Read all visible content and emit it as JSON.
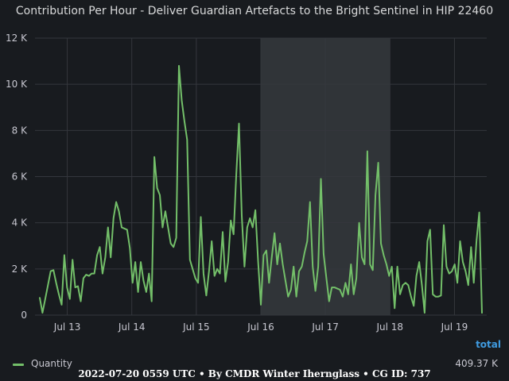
{
  "title": "Contribution Per Hour - Deliver Guardian Artefacts to the Bright Sentinel in HIP 22460",
  "total_header": "total",
  "legend": {
    "label": "Quantity",
    "total": "409.37 K"
  },
  "footer": "2022-07-20 0559 UTC • By CMDR Winter Ihernglass • CG ID: 737",
  "colors": {
    "background": "#181b1f",
    "series": "#73bf69",
    "grid": "#34373d",
    "highlight": "#35383d",
    "total_link": "#3f9be0"
  },
  "chart_data": {
    "type": "line",
    "title": "Contribution Per Hour - Deliver Guardian Artefacts to the Bright Sentinel in HIP 22460",
    "xlabel": "",
    "ylabel": "",
    "x_range": [
      "2022-07-12 12:00",
      "2022-07-19 12:00"
    ],
    "x_ticks": [
      "Jul 13",
      "Jul 14",
      "Jul 15",
      "Jul 16",
      "Jul 17",
      "Jul 18",
      "Jul 19"
    ],
    "ylim": [
      0,
      12000
    ],
    "y_ticks": [
      0,
      2000,
      4000,
      6000,
      8000,
      10000,
      12000
    ],
    "y_tick_labels": [
      "0",
      "2 K",
      "4 K",
      "6 K",
      "8 K",
      "10 K",
      "12 K"
    ],
    "grid": true,
    "legend_position": "bottom",
    "highlight_range": [
      "2022-07-16 00:00",
      "2022-07-18 00:00"
    ],
    "series": [
      {
        "name": "Quantity",
        "color": "#73bf69",
        "values": [
          750,
          100,
          700,
          1300,
          1900,
          1950,
          1400,
          900,
          450,
          2600,
          1200,
          700,
          2400,
          1200,
          1250,
          600,
          1600,
          1750,
          1700,
          1800,
          1800,
          2600,
          2950,
          1800,
          2500,
          3800,
          2500,
          4200,
          4900,
          4500,
          3800,
          3750,
          3700,
          2900,
          1400,
          2300,
          1000,
          2300,
          1500,
          1000,
          1800,
          600,
          6850,
          5500,
          5200,
          3800,
          4500,
          3800,
          3100,
          2950,
          3350,
          10800,
          9300,
          8400,
          7600,
          2400,
          2000,
          1600,
          1400,
          4250,
          1800,
          850,
          1900,
          3200,
          1700,
          2000,
          1800,
          3600,
          1450,
          2300,
          4100,
          3500,
          6100,
          8300,
          4300,
          2100,
          3800,
          4200,
          3800,
          4550,
          2300,
          450,
          2600,
          2800,
          1400,
          2500,
          3550,
          2200,
          3100,
          2200,
          1500,
          800,
          1100,
          2100,
          800,
          1900,
          2100,
          2700,
          3200,
          4900,
          2100,
          1050,
          2100,
          5900,
          2650,
          1600,
          600,
          1200,
          1200,
          1150,
          1100,
          800,
          1400,
          900,
          2200,
          900,
          1600,
          4000,
          2500,
          2200,
          7100,
          2200,
          1950,
          5200,
          6600,
          3100,
          2600,
          2200,
          1700,
          2100,
          300,
          2100,
          900,
          1300,
          1400,
          1300,
          800,
          400,
          1700,
          2300,
          1300,
          100,
          3200,
          3700,
          900,
          800,
          800,
          850,
          3900,
          2100,
          1800,
          1900,
          2200,
          1400,
          3200,
          2300,
          1900,
          1300,
          2950,
          1400,
          3200,
          4450,
          100
        ]
      }
    ]
  }
}
